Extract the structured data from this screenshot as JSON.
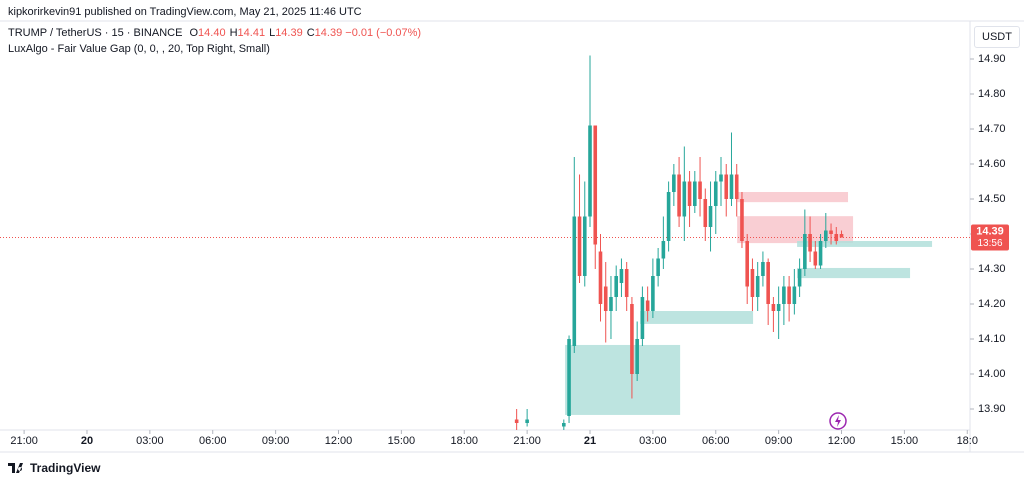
{
  "chart_data": {
    "type": "candlestick",
    "attribution": "kipkorirkevin91 published on TradingView.com, May 21, 2025 11:46 UTC",
    "symbol": "TRUMP / TetherUS · 15 · BINANCE",
    "ohlc_legend": [
      {
        "key": "O",
        "value": "14.40"
      },
      {
        "key": "H",
        "value": "14.41"
      },
      {
        "key": "L",
        "value": "14.39"
      },
      {
        "key": "C",
        "value": "14.39"
      }
    ],
    "change": "−0.01 (−0.07%)",
    "indicator": "LuxAlgo - Fair Value Gap (0, 0, , 20, Top Right, Small)",
    "currency": "USDT",
    "brand": "TradingView",
    "up_color": "#26a69a",
    "down_color": "#ef5350",
    "x": [
      20.5,
      21,
      22.75,
      23,
      23.25,
      23.5,
      23.75,
      24,
      24.25,
      24.5,
      24.75,
      25,
      25.25,
      25.5,
      25.75,
      26,
      26.25,
      26.5,
      26.75,
      27,
      27.25,
      27.5,
      27.75,
      28,
      28.25,
      28.5,
      28.75,
      29,
      29.25,
      29.5,
      29.75,
      30,
      30.25,
      30.5,
      30.75,
      31,
      31.25,
      31.5,
      31.75,
      32,
      32.25,
      32.5,
      32.75,
      33,
      33.25,
      33.5,
      33.75,
      34,
      34.25,
      34.5,
      34.75,
      35,
      35.25,
      35.5,
      35.75,
      36
    ],
    "open": [
      13.87,
      13.86,
      13.85,
      13.88,
      14.08,
      14.45,
      14.28,
      14.45,
      14.71,
      14.35,
      14.25,
      14.18,
      14.22,
      14.26,
      14.3,
      14.2,
      14.0,
      14.1,
      14.21,
      14.18,
      14.28,
      14.33,
      14.38,
      14.52,
      14.57,
      14.45,
      14.55,
      14.48,
      14.55,
      14.5,
      14.42,
      14.48,
      14.55,
      14.57,
      14.5,
      14.57,
      14.5,
      14.38,
      14.3,
      14.22,
      14.28,
      14.32,
      14.2,
      14.18,
      14.2,
      14.25,
      14.2,
      14.25,
      14.3,
      14.4,
      14.35,
      14.31,
      14.38,
      14.41,
      14.4,
      14.4
    ],
    "high": [
      13.9,
      13.9,
      13.87,
      14.11,
      14.62,
      14.57,
      14.55,
      14.91,
      14.71,
      14.4,
      14.32,
      14.28,
      14.31,
      14.33,
      14.32,
      14.22,
      14.15,
      14.25,
      14.25,
      14.33,
      14.36,
      14.45,
      14.55,
      14.6,
      14.62,
      14.65,
      14.58,
      14.58,
      14.62,
      14.53,
      14.55,
      14.58,
      14.62,
      14.6,
      14.69,
      14.6,
      14.52,
      14.4,
      14.33,
      14.32,
      14.35,
      14.33,
      14.22,
      14.25,
      14.28,
      14.28,
      14.3,
      14.33,
      14.47,
      14.45,
      14.38,
      14.4,
      14.46,
      14.43,
      14.42,
      14.41
    ],
    "low": [
      13.84,
      13.85,
      13.84,
      13.86,
      14.06,
      14.26,
      14.25,
      14.42,
      14.3,
      14.15,
      14.09,
      14.1,
      14.18,
      14.22,
      14.18,
      13.93,
      13.98,
      14.08,
      14.15,
      14.16,
      14.25,
      14.3,
      14.35,
      14.48,
      14.42,
      14.38,
      14.42,
      14.46,
      14.45,
      14.38,
      14.35,
      14.4,
      14.48,
      14.45,
      14.48,
      14.45,
      14.36,
      14.2,
      14.18,
      14.18,
      14.25,
      14.14,
      14.12,
      14.1,
      14.14,
      14.15,
      14.17,
      14.22,
      14.28,
      14.32,
      14.3,
      14.3,
      14.36,
      14.37,
      14.37,
      14.39
    ],
    "close": [
      13.86,
      13.87,
      13.86,
      14.1,
      14.45,
      14.28,
      14.45,
      14.71,
      14.37,
      14.2,
      14.18,
      14.22,
      14.28,
      14.3,
      14.22,
      14.0,
      14.1,
      14.22,
      14.18,
      14.28,
      14.33,
      14.38,
      14.52,
      14.57,
      14.45,
      14.55,
      14.48,
      14.55,
      14.5,
      14.42,
      14.48,
      14.55,
      14.57,
      14.5,
      14.57,
      14.5,
      14.38,
      14.25,
      14.22,
      14.28,
      14.32,
      14.2,
      14.18,
      14.2,
      14.25,
      14.2,
      14.25,
      14.3,
      14.4,
      14.35,
      14.31,
      14.38,
      14.41,
      14.4,
      14.38,
      14.39
    ],
    "zones": [
      {
        "x0": 22.81,
        "x1": 28.3,
        "top": 14.083,
        "bottom": 13.883,
        "color": "#b2dfdb"
      },
      {
        "x0": 26.39,
        "x1": 31.78,
        "top": 14.18,
        "bottom": 14.143,
        "color": "#b2dfdb"
      },
      {
        "x0": 31.02,
        "x1": 36.31,
        "top": 14.52,
        "bottom": 14.491,
        "color": "#f8c5cb"
      },
      {
        "x0": 31.02,
        "x1": 36.55,
        "top": 14.451,
        "bottom": 14.374,
        "color": "#f8c5cb"
      },
      {
        "x0": 33.88,
        "x1": 40.32,
        "top": 14.38,
        "bottom": 14.363,
        "color": "#b2dfdb"
      },
      {
        "x0": 33.88,
        "x1": 39.27,
        "top": 14.303,
        "bottom": 14.274,
        "color": "#b2dfdb"
      }
    ],
    "last_price": {
      "value": 14.39,
      "label": "14.39"
    },
    "countdown": "13:56",
    "xlim": [
      -4.15,
      42.13
    ],
    "ylim": [
      13.84,
      14.99
    ],
    "xticks": [
      {
        "value": -3,
        "label": "21:00"
      },
      {
        "value": 0,
        "label": "20"
      },
      {
        "value": 3,
        "label": "03:00"
      },
      {
        "value": 6,
        "label": "06:00"
      },
      {
        "value": 9,
        "label": "09:00"
      },
      {
        "value": 12,
        "label": "12:00"
      },
      {
        "value": 15,
        "label": "15:00"
      },
      {
        "value": 18,
        "label": "18:00"
      },
      {
        "value": 21,
        "label": "21:00"
      },
      {
        "value": 24,
        "label": "21"
      },
      {
        "value": 27,
        "label": "03:00"
      },
      {
        "value": 30,
        "label": "06:00"
      },
      {
        "value": 33,
        "label": "09:00"
      },
      {
        "value": 36,
        "label": "12:00"
      },
      {
        "value": 39,
        "label": "15:00"
      },
      {
        "value": 42,
        "label": "18:0"
      }
    ],
    "yticks": [
      {
        "value": 13.9,
        "label": "13.90"
      },
      {
        "value": 14.0,
        "label": "14.00"
      },
      {
        "value": 14.1,
        "label": "14.10"
      },
      {
        "value": 14.2,
        "label": "14.20"
      },
      {
        "value": 14.3,
        "label": "14.30"
      },
      {
        "value": 14.4,
        "label": "14.40"
      },
      {
        "value": 14.5,
        "label": "14.50"
      },
      {
        "value": 14.6,
        "label": "14.60"
      },
      {
        "value": 14.7,
        "label": "14.70"
      },
      {
        "value": 14.8,
        "label": "14.80"
      },
      {
        "value": 14.9,
        "label": "14.90"
      }
    ],
    "grid": false
  }
}
